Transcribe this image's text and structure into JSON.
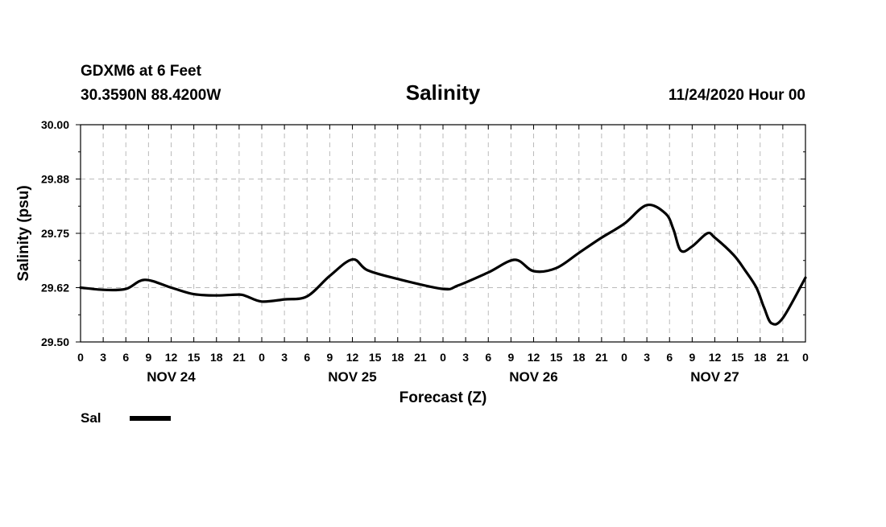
{
  "header": {
    "station": "GDXM6 at 6 Feet",
    "location": "30.3590N 88.4200W",
    "datetime": "11/24/2020 Hour 00"
  },
  "legend": {
    "label": "Sal"
  },
  "colors": {
    "line": "#000000",
    "grid": "#bbbbbb",
    "background": "#ffffff"
  },
  "chart_data": {
    "type": "line",
    "title": "Salinity",
    "xlabel": "Forecast (Z)",
    "ylabel": "Salinity (psu)",
    "x_unit": "hours since 11/24/2020 00Z",
    "xlim": [
      0,
      96
    ],
    "ylim": [
      29.5,
      30.0
    ],
    "yticks": [
      "29.50",
      "29.62",
      "29.75",
      "29.88",
      "30.00"
    ],
    "ytick_values": [
      29.5,
      29.625,
      29.75,
      29.875,
      30.0
    ],
    "xtick_labels": [
      "0",
      "3",
      "6",
      "9",
      "12",
      "15",
      "18",
      "21",
      "0",
      "3",
      "6",
      "9",
      "12",
      "15",
      "18",
      "21",
      "0",
      "3",
      "6",
      "9",
      "12",
      "15",
      "18",
      "21",
      "0",
      "3",
      "6",
      "9",
      "12",
      "15",
      "18",
      "21",
      "0"
    ],
    "date_labels": [
      {
        "label": "NOV 24",
        "hour": 12
      },
      {
        "label": "NOV 25",
        "hour": 36
      },
      {
        "label": "NOV 26",
        "hour": 60
      },
      {
        "label": "NOV 27",
        "hour": 84
      }
    ],
    "grid": true,
    "series": [
      {
        "name": "Sal",
        "x": [
          0,
          3,
          6,
          8.5,
          12,
          15,
          18,
          21,
          22,
          24,
          27,
          30,
          33,
          36,
          38,
          42,
          48,
          50,
          54,
          57.5,
          60,
          63,
          66,
          69,
          72,
          75,
          77.5,
          78.5,
          79.5,
          81,
          83,
          84,
          86.5,
          88,
          89.5,
          90.5,
          91.5,
          93,
          96
        ],
        "y": [
          29.625,
          29.62,
          29.622,
          29.643,
          29.625,
          29.61,
          29.607,
          29.609,
          29.605,
          29.593,
          29.598,
          29.605,
          29.652,
          29.69,
          29.665,
          29.645,
          29.622,
          29.63,
          29.66,
          29.689,
          29.663,
          29.67,
          29.705,
          29.74,
          29.772,
          29.815,
          29.795,
          29.76,
          29.71,
          29.72,
          29.75,
          29.74,
          29.7,
          29.665,
          29.625,
          29.58,
          29.543,
          29.555,
          29.648
        ]
      }
    ]
  }
}
